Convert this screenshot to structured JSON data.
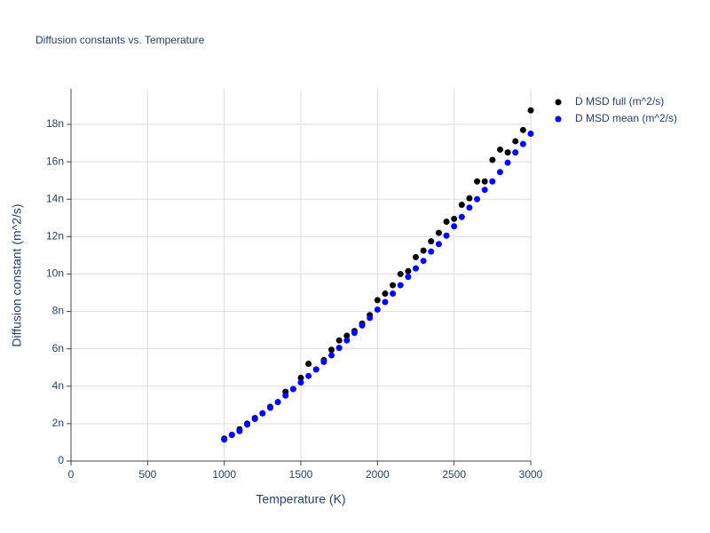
{
  "chart_data": {
    "type": "scatter",
    "title": "Diffusion constants vs. Temperature",
    "x_label": "Temperature (K)",
    "y_label": "Diffusion constant (m^2/s)",
    "x": [
      1000,
      1050,
      1100,
      1150,
      1200,
      1250,
      1300,
      1350,
      1400,
      1450,
      1500,
      1550,
      1600,
      1650,
      1700,
      1750,
      1800,
      1850,
      1900,
      1950,
      2000,
      2050,
      2100,
      2150,
      2200,
      2250,
      2300,
      2350,
      2400,
      2450,
      2500,
      2550,
      2600,
      2650,
      2700,
      2750,
      2800,
      2850,
      2900,
      2950,
      3000
    ],
    "series": [
      {
        "name": "D MSD full (m^2/s)",
        "color": "#000000",
        "values": [
          1.2e-09,
          1.4e-09,
          1.7e-09,
          2e-09,
          2.3e-09,
          2.55e-09,
          2.9e-09,
          3.15e-09,
          3.7e-09,
          3.85e-09,
          4.45e-09,
          5.2e-09,
          4.9e-09,
          5.4e-09,
          5.95e-09,
          6.45e-09,
          6.7e-09,
          6.95e-09,
          7.35e-09,
          7.8e-09,
          8.6e-09,
          8.95e-09,
          9.4e-09,
          1e-08,
          1.015e-08,
          1.09e-08,
          1.125e-08,
          1.175e-08,
          1.22e-08,
          1.28e-08,
          1.295e-08,
          1.37e-08,
          1.405e-08,
          1.495e-08,
          1.495e-08,
          1.61e-08,
          1.665e-08,
          1.65e-08,
          1.71e-08,
          1.77e-08,
          1.875e-08
        ]
      },
      {
        "name": "D MSD mean (m^2/s)",
        "color": "#0000ff",
        "values": [
          1.15e-09,
          1.4e-09,
          1.6e-09,
          1.95e-09,
          2.25e-09,
          2.55e-09,
          2.85e-09,
          3.15e-09,
          3.5e-09,
          3.85e-09,
          4.2e-09,
          4.55e-09,
          4.9e-09,
          5.3e-09,
          5.65e-09,
          6.05e-09,
          6.45e-09,
          6.85e-09,
          7.25e-09,
          7.65e-09,
          8.1e-09,
          8.5e-09,
          8.95e-09,
          9.4e-09,
          9.85e-09,
          1.03e-08,
          1.07e-08,
          1.12e-08,
          1.16e-08,
          1.205e-08,
          1.255e-08,
          1.305e-08,
          1.355e-08,
          1.4e-08,
          1.45e-08,
          1.495e-08,
          1.545e-08,
          1.595e-08,
          1.65e-08,
          1.695e-08,
          1.75e-08
        ]
      }
    ],
    "xlim": [
      0,
      3000
    ],
    "xticks": [
      0,
      500,
      1000,
      1500,
      2000,
      2500,
      3000
    ],
    "ylim": [
      0,
      1.99e-08
    ],
    "yticks": [
      0,
      {
        "value": 2e-09,
        "label": "2n"
      },
      {
        "value": 4e-09,
        "label": "4n"
      },
      {
        "value": 6e-09,
        "label": "6n"
      },
      {
        "value": 8e-09,
        "label": "8n"
      },
      {
        "value": 1e-08,
        "label": "10n"
      },
      {
        "value": 1.2e-08,
        "label": "12n"
      },
      {
        "value": 1.4e-08,
        "label": "14n"
      },
      {
        "value": 1.6e-08,
        "label": "16n"
      },
      {
        "value": 1.8e-08,
        "label": "18n"
      }
    ],
    "grid": true,
    "legend": "top-right"
  }
}
